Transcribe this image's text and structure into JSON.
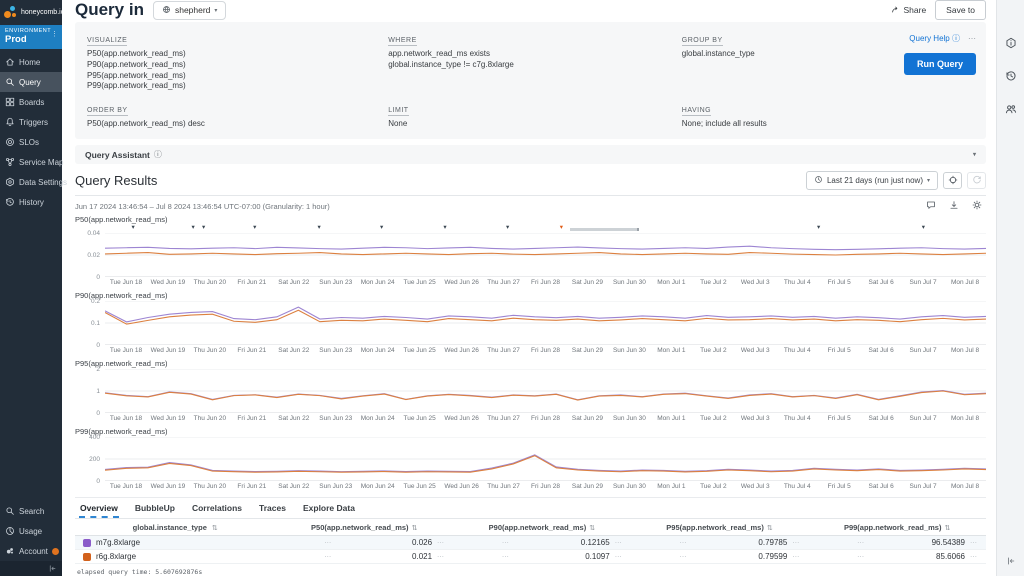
{
  "app": {
    "logo_text": "honeycomb.io"
  },
  "environment": {
    "label": "ENVIRONMENT",
    "name": "Prod",
    "menu_glyph": "⋮"
  },
  "sidebar": {
    "items": [
      {
        "label": "Home",
        "icon": "home"
      },
      {
        "label": "Query",
        "icon": "search",
        "active": true
      },
      {
        "label": "Boards",
        "icon": "boards"
      },
      {
        "label": "Triggers",
        "icon": "bell"
      },
      {
        "label": "SLOs",
        "icon": "slo"
      },
      {
        "label": "Service Map",
        "icon": "map"
      },
      {
        "label": "Data Settings",
        "icon": "datasettings"
      },
      {
        "label": "History",
        "icon": "history"
      }
    ],
    "footer_items": [
      {
        "label": "Search",
        "icon": "search"
      },
      {
        "label": "Usage",
        "icon": "usage"
      },
      {
        "label": "Account",
        "icon": "account",
        "badge": true
      }
    ]
  },
  "header": {
    "title": "Query in",
    "dataset": "shepherd",
    "share_label": "Share",
    "save_to_label": "Save to",
    "chevron": "▾"
  },
  "query_builder": {
    "sections_row1": [
      {
        "key": "visualize",
        "label": "VISUALIZE",
        "lines": [
          "P50(app.network_read_ms)",
          "P90(app.network_read_ms)",
          "P95(app.network_read_ms)",
          "P99(app.network_read_ms)"
        ]
      },
      {
        "key": "where",
        "label": "WHERE",
        "lines": [
          "app.network_read_ms exists",
          "global.instance_type != c7g.8xlarge"
        ]
      },
      {
        "key": "group-by",
        "label": "GROUP BY",
        "lines": [
          "global.instance_type"
        ]
      }
    ],
    "sections_row2": [
      {
        "key": "order-by",
        "label": "ORDER BY",
        "lines": [
          "P50(app.network_read_ms) desc"
        ]
      },
      {
        "key": "limit",
        "label": "LIMIT",
        "lines": [
          "None"
        ]
      },
      {
        "key": "having",
        "label": "HAVING",
        "lines": [
          "None; include all results"
        ]
      }
    ],
    "help_label": "Query Help",
    "help_info_glyph": "ⓘ",
    "help_dots": "⋯",
    "run_label": "Run Query"
  },
  "query_assistant": {
    "label": "Query Assistant",
    "info_glyph": "ⓘ",
    "chevron": "▾"
  },
  "results": {
    "title": "Query Results",
    "time_range": "Last 21 days (run just now)",
    "chevron": "▾",
    "caption": "Jun 17 2024 13:46:54 – Jul 8 2024 13:46:54 UTC-07:00 (Granularity: 1 hour)"
  },
  "tabs": [
    {
      "label": "Overview",
      "active": true
    },
    {
      "label": "BubbleUp"
    },
    {
      "label": "Correlations"
    },
    {
      "label": "Traces"
    },
    {
      "label": "Explore Data"
    }
  ],
  "table": {
    "sort_glyph": "⇅",
    "spark_glyph": "⋯",
    "columns": [
      "global.instance_type",
      "P50(app.network_read_ms)",
      "P90(app.network_read_ms)",
      "P95(app.network_read_ms)",
      "P99(app.network_read_ms)"
    ],
    "rows": [
      {
        "color": "#8b5cc9",
        "name": "m7g.8xlarge",
        "values": [
          "0.026",
          "0.12165",
          "0.79785",
          "96.54389"
        ]
      },
      {
        "color": "#d2611c",
        "name": "r6g.8xlarge",
        "values": [
          "0.021",
          "0.1097",
          "0.79599",
          "85.6066"
        ]
      }
    ]
  },
  "footer": {
    "elapsed": "elapsed query time: 5.607692876s"
  },
  "colors": {
    "accent_blue": "#1273d4",
    "env_blue": "#1e7fc2",
    "series_purple": "#9d85d2",
    "series_orange": "#dc8040",
    "marker_dark": "#3b4752",
    "marker_orange": "#e05c17"
  },
  "chart_data": [
    {
      "type": "line",
      "title": "P50(app.network_read_ms)",
      "ylim": [
        0,
        0.04
      ],
      "yticks": [
        0,
        0.02,
        0.04
      ],
      "ytick_labels": [
        "0",
        "0.02",
        "0.04"
      ],
      "categories": [
        "Tue Jun 18",
        "Wed Jun 19",
        "Thu Jun 20",
        "Fri Jun 21",
        "Sat Jun 22",
        "Sun Jun 23",
        "Mon Jun 24",
        "Tue Jun 25",
        "Wed Jun 26",
        "Thu Jun 27",
        "Fri Jun 28",
        "Sat Jun 29",
        "Sun Jun 30",
        "Mon Jul 1",
        "Tue Jul 2",
        "Wed Jul 3",
        "Thu Jul 4",
        "Fri Jul 5",
        "Sat Jul 6",
        "Sun Jul 7",
        "Mon Jul 8"
      ],
      "markers": {
        "triangles": [
          {
            "pos": 0.032,
            "color": "#3b4752"
          },
          {
            "pos": 0.1,
            "color": "#3b4752"
          },
          {
            "pos": 0.112,
            "color": "#3b4752"
          },
          {
            "pos": 0.17,
            "color": "#3b4752"
          },
          {
            "pos": 0.243,
            "color": "#3b4752"
          },
          {
            "pos": 0.314,
            "color": "#3b4752"
          },
          {
            "pos": 0.386,
            "color": "#3b4752"
          },
          {
            "pos": 0.457,
            "color": "#3b4752"
          },
          {
            "pos": 0.518,
            "color": "#e05c17"
          },
          {
            "pos": 0.81,
            "color": "#3b4752"
          },
          {
            "pos": 0.929,
            "color": "#3b4752"
          }
        ],
        "range_bar": [
          0.528,
          0.606
        ]
      },
      "series": [
        {
          "name": "m7g.8xlarge",
          "color": "#9d85d2",
          "values": [
            0.0262,
            0.0266,
            0.027,
            0.026,
            0.0256,
            0.0262,
            0.0266,
            0.0258,
            0.027,
            0.0264,
            0.0258,
            0.0254,
            0.0262,
            0.027,
            0.0266,
            0.0258,
            0.0264,
            0.027,
            0.026,
            0.0254,
            0.026,
            0.0266,
            0.0272,
            0.0264,
            0.0258,
            0.0254,
            0.026,
            0.0266,
            0.026,
            0.0272,
            0.028,
            0.0266,
            0.0258,
            0.0252,
            0.0248,
            0.0252,
            0.0256,
            0.0262,
            0.0266,
            0.0258,
            0.0254,
            0.026
          ]
        },
        {
          "name": "r6g.8xlarge",
          "color": "#dc8040",
          "values": [
            0.021,
            0.0216,
            0.0222,
            0.0206,
            0.021,
            0.0216,
            0.021,
            0.0204,
            0.0212,
            0.0216,
            0.0222,
            0.021,
            0.0204,
            0.021,
            0.0216,
            0.021,
            0.0204,
            0.0212,
            0.0216,
            0.0208,
            0.0204,
            0.021,
            0.0216,
            0.0222,
            0.021,
            0.0204,
            0.021,
            0.0216,
            0.021,
            0.0206,
            0.0222,
            0.0216,
            0.0208,
            0.0204,
            0.02,
            0.0206,
            0.021,
            0.0216,
            0.021,
            0.0204,
            0.021,
            0.0216
          ]
        }
      ]
    },
    {
      "type": "line",
      "title": "P90(app.network_read_ms)",
      "ylim": [
        0,
        0.2
      ],
      "yticks": [
        0,
        0.1,
        0.2
      ],
      "ytick_labels": [
        "0",
        "0.1",
        "0.2"
      ],
      "categories": [
        "Tue Jun 18",
        "Wed Jun 19",
        "Thu Jun 20",
        "Fri Jun 21",
        "Sat Jun 22",
        "Sun Jun 23",
        "Mon Jun 24",
        "Tue Jun 25",
        "Wed Jun 26",
        "Thu Jun 27",
        "Fri Jun 28",
        "Sat Jun 29",
        "Sun Jun 30",
        "Mon Jul 1",
        "Tue Jul 2",
        "Wed Jul 3",
        "Thu Jul 4",
        "Fri Jul 5",
        "Sat Jul 6",
        "Sun Jul 7",
        "Mon Jul 8"
      ],
      "series": [
        {
          "name": "m7g.8xlarge",
          "color": "#9d85d2",
          "values": [
            0.155,
            0.105,
            0.125,
            0.14,
            0.148,
            0.152,
            0.12,
            0.115,
            0.128,
            0.172,
            0.118,
            0.125,
            0.122,
            0.13,
            0.125,
            0.118,
            0.132,
            0.128,
            0.122,
            0.135,
            0.128,
            0.124,
            0.13,
            0.122,
            0.126,
            0.132,
            0.128,
            0.122,
            0.134,
            0.126,
            0.128,
            0.132,
            0.126,
            0.13,
            0.122,
            0.128,
            0.124,
            0.118,
            0.128,
            0.134,
            0.126,
            0.13
          ]
        },
        {
          "name": "r6g.8xlarge",
          "color": "#dc8040",
          "values": [
            0.148,
            0.095,
            0.112,
            0.128,
            0.136,
            0.14,
            0.108,
            0.103,
            0.115,
            0.158,
            0.106,
            0.112,
            0.11,
            0.118,
            0.112,
            0.106,
            0.12,
            0.115,
            0.11,
            0.122,
            0.115,
            0.112,
            0.118,
            0.11,
            0.114,
            0.12,
            0.115,
            0.11,
            0.121,
            0.114,
            0.115,
            0.12,
            0.114,
            0.118,
            0.11,
            0.115,
            0.112,
            0.106,
            0.115,
            0.121,
            0.114,
            0.118
          ]
        }
      ]
    },
    {
      "type": "line",
      "title": "P95(app.network_read_ms)",
      "ylim": [
        0,
        2
      ],
      "yticks": [
        0,
        1,
        2
      ],
      "ytick_labels": [
        "0",
        "1",
        "2"
      ],
      "categories": [
        "Tue Jun 18",
        "Wed Jun 19",
        "Thu Jun 20",
        "Fri Jun 21",
        "Sat Jun 22",
        "Sun Jun 23",
        "Mon Jun 24",
        "Tue Jun 25",
        "Wed Jun 26",
        "Thu Jun 27",
        "Fri Jun 28",
        "Sat Jun 29",
        "Sun Jun 30",
        "Mon Jul 1",
        "Tue Jul 2",
        "Wed Jul 3",
        "Thu Jul 4",
        "Fri Jul 5",
        "Sat Jul 6",
        "Sun Jul 7",
        "Mon Jul 8"
      ],
      "series": [
        {
          "name": "m7g.8xlarge",
          "color": "#9d85d2",
          "values": [
            0.92,
            0.8,
            0.74,
            0.96,
            0.88,
            0.62,
            0.8,
            0.83,
            0.72,
            0.86,
            0.8,
            0.66,
            0.78,
            0.88,
            0.62,
            0.78,
            0.85,
            0.8,
            0.72,
            0.82,
            0.78,
            0.86,
            0.6,
            0.78,
            0.82,
            0.74,
            0.86,
            0.9,
            0.78,
            0.68,
            0.82,
            0.88,
            0.74,
            0.8,
            0.68,
            0.85,
            0.62,
            0.78,
            0.95,
            1.02,
            0.85,
            0.9
          ]
        },
        {
          "name": "r6g.8xlarge",
          "color": "#dc8040",
          "values": [
            0.9,
            0.78,
            0.73,
            0.94,
            0.86,
            0.6,
            0.79,
            0.82,
            0.7,
            0.85,
            0.79,
            0.64,
            0.77,
            0.86,
            0.61,
            0.77,
            0.84,
            0.78,
            0.7,
            0.81,
            0.77,
            0.85,
            0.59,
            0.77,
            0.8,
            0.73,
            0.85,
            0.88,
            0.77,
            0.66,
            0.8,
            0.86,
            0.73,
            0.79,
            0.66,
            0.83,
            0.6,
            0.76,
            0.93,
            1.0,
            0.83,
            0.88
          ]
        }
      ]
    },
    {
      "type": "line",
      "title": "P99(app.network_read_ms)",
      "ylim": [
        0,
        400
      ],
      "yticks": [
        0,
        200,
        400
      ],
      "ytick_labels": [
        "0",
        "200",
        "400"
      ],
      "categories": [
        "Tue Jun 18",
        "Wed Jun 19",
        "Thu Jun 20",
        "Fri Jun 21",
        "Sat Jun 22",
        "Sun Jun 23",
        "Mon Jun 24",
        "Tue Jun 25",
        "Wed Jun 26",
        "Thu Jun 27",
        "Fri Jun 28",
        "Sat Jun 29",
        "Sun Jun 30",
        "Mon Jul 1",
        "Tue Jul 2",
        "Wed Jul 3",
        "Thu Jul 4",
        "Fri Jul 5",
        "Sat Jul 6",
        "Sun Jul 7",
        "Mon Jul 8"
      ],
      "series": [
        {
          "name": "m7g.8xlarge",
          "color": "#9d85d2",
          "values": [
            105,
            122,
            126,
            168,
            146,
            96,
            90,
            86,
            88,
            94,
            90,
            85,
            88,
            92,
            86,
            90,
            88,
            86,
            118,
            162,
            238,
            128,
            106,
            96,
            90,
            100,
            96,
            88,
            94,
            106,
            100,
            90,
            96,
            116,
            106,
            100,
            110,
            96,
            100,
            106,
            116,
            110
          ]
        },
        {
          "name": "r6g.8xlarge",
          "color": "#dc8040",
          "values": [
            98,
            115,
            120,
            160,
            140,
            90,
            85,
            80,
            82,
            88,
            84,
            80,
            82,
            86,
            80,
            84,
            82,
            80,
            110,
            155,
            230,
            120,
            100,
            90,
            84,
            94,
            90,
            82,
            88,
            100,
            94,
            84,
            90,
            110,
            100,
            94,
            104,
            90,
            94,
            100,
            110,
            104
          ]
        }
      ]
    }
  ]
}
